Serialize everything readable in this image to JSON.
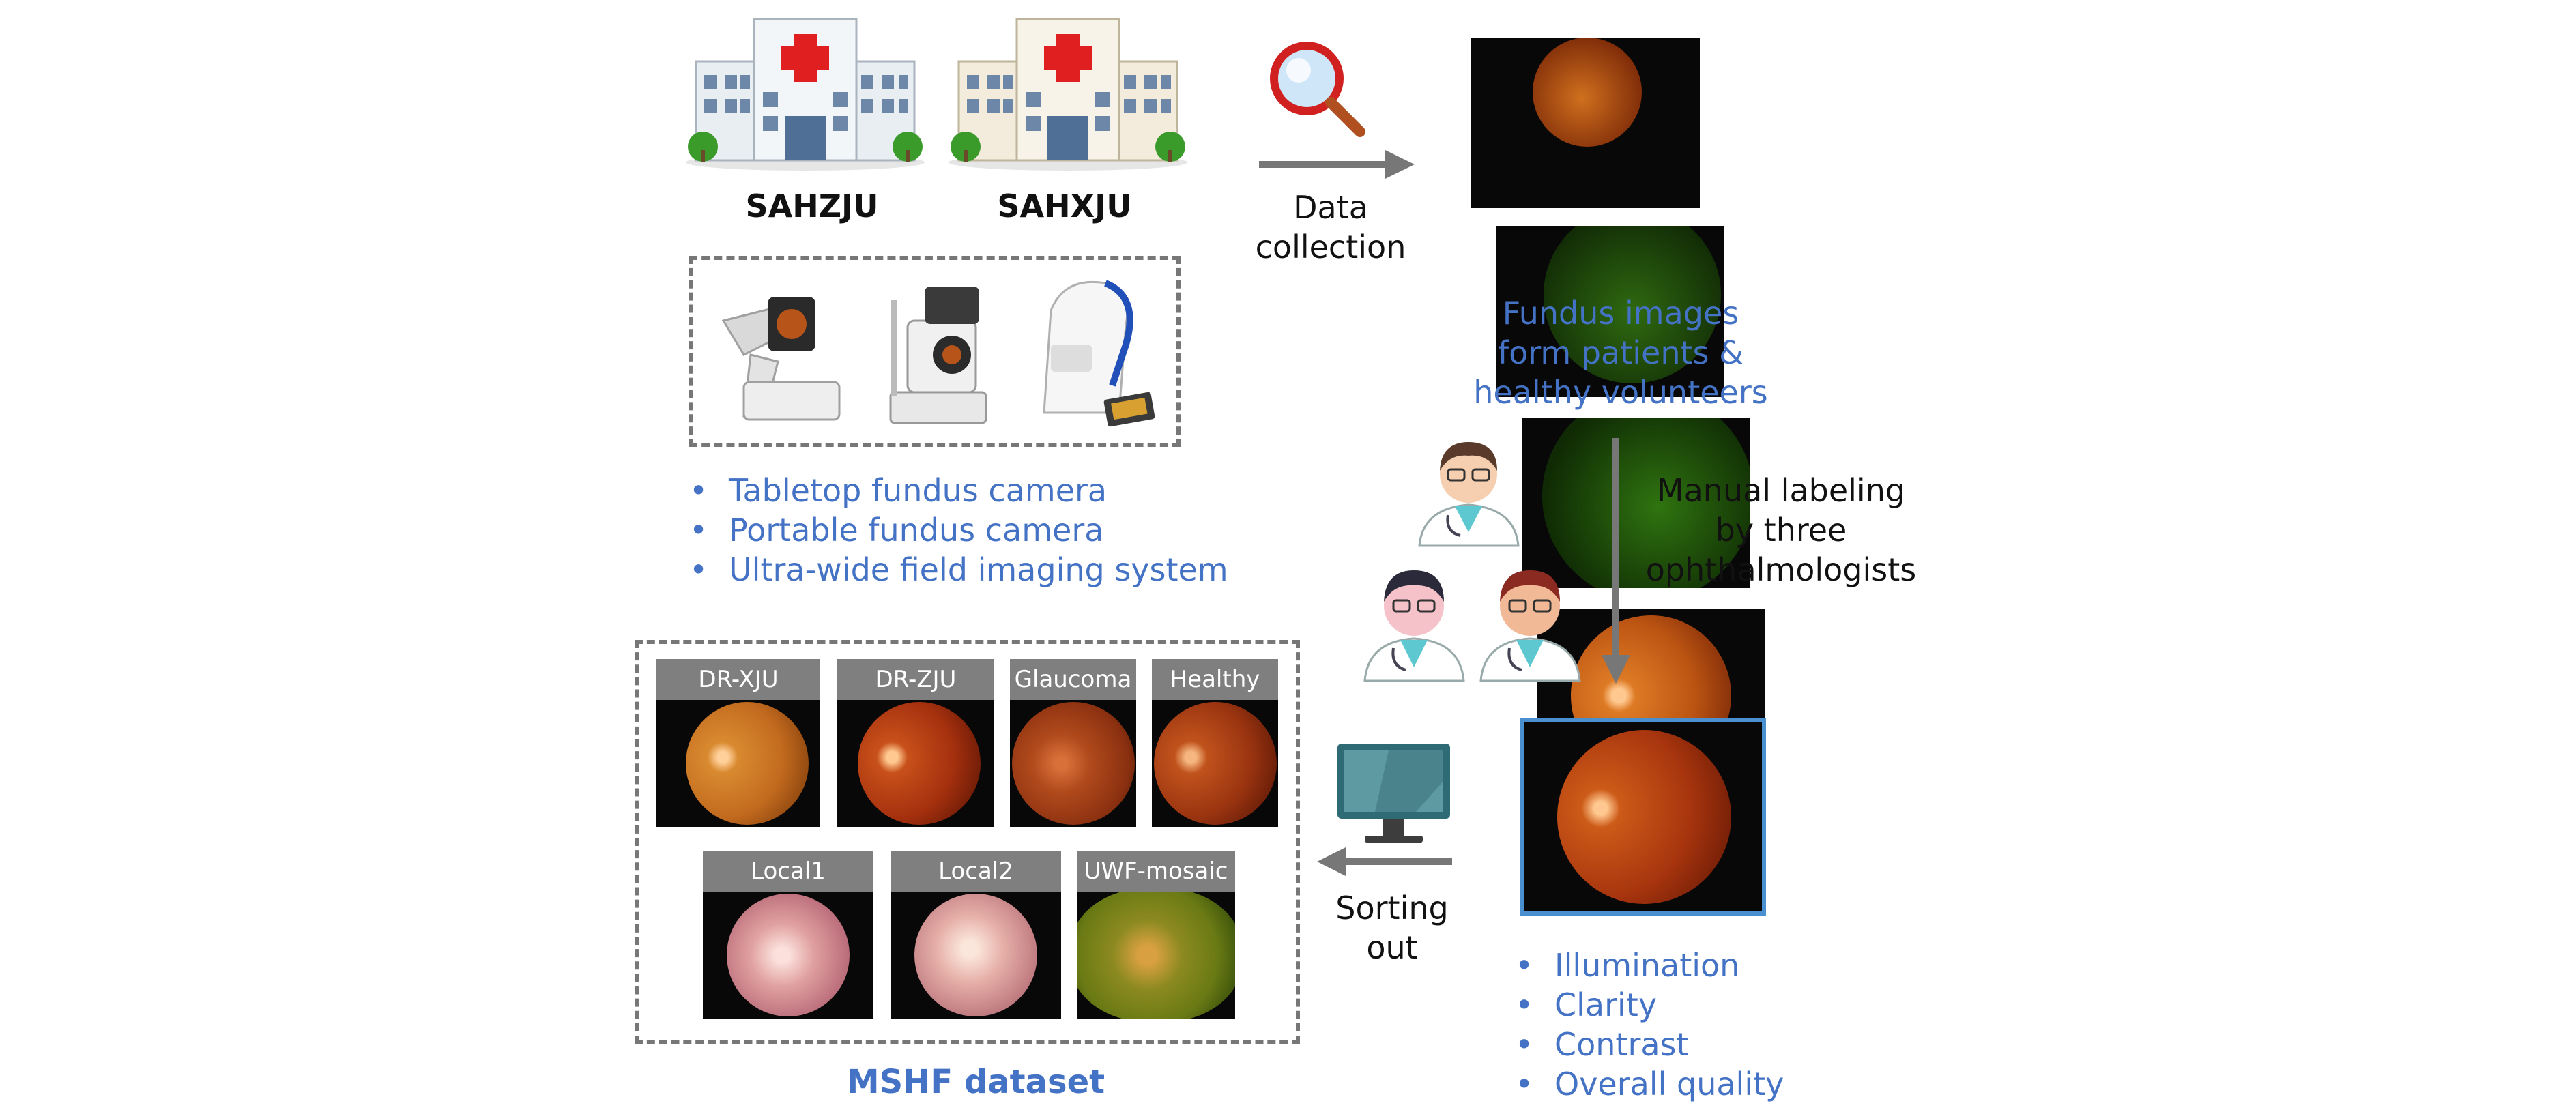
{
  "hospitals": [
    {
      "name": "SAHZJU"
    },
    {
      "name": "SAHXJU"
    }
  ],
  "collection": {
    "label_line1": "Data",
    "label_line2": "collection"
  },
  "fundus_source": {
    "line1": "Fundus images",
    "line2": "form patients &",
    "line3": "healthy volunteers"
  },
  "devices": [
    {
      "label": "Tabletop fundus camera"
    },
    {
      "label": "Portable fundus camera"
    },
    {
      "label": "Ultra-wide field imaging system"
    }
  ],
  "labeling": {
    "line1": "Manual labeling",
    "line2": "by three",
    "line3": "ophthalmologists"
  },
  "quality_criteria": [
    {
      "label": "Illumination"
    },
    {
      "label": "Clarity"
    },
    {
      "label": "Contrast"
    },
    {
      "label": "Overall quality"
    }
  ],
  "sorting": {
    "line1": "Sorting",
    "line2": "out"
  },
  "dataset": {
    "title": "MSHF dataset",
    "tiles": [
      {
        "label": "DR-XJU"
      },
      {
        "label": "DR-ZJU"
      },
      {
        "label": "Glaucoma"
      },
      {
        "label": "Healthy"
      },
      {
        "label": "Local1"
      },
      {
        "label": "Local2"
      },
      {
        "label": "UWF-mosaic"
      }
    ]
  },
  "colors": {
    "text_blue": "#4472c4",
    "arrow_gray": "#777777",
    "header_gray": "#7f7f7f"
  }
}
